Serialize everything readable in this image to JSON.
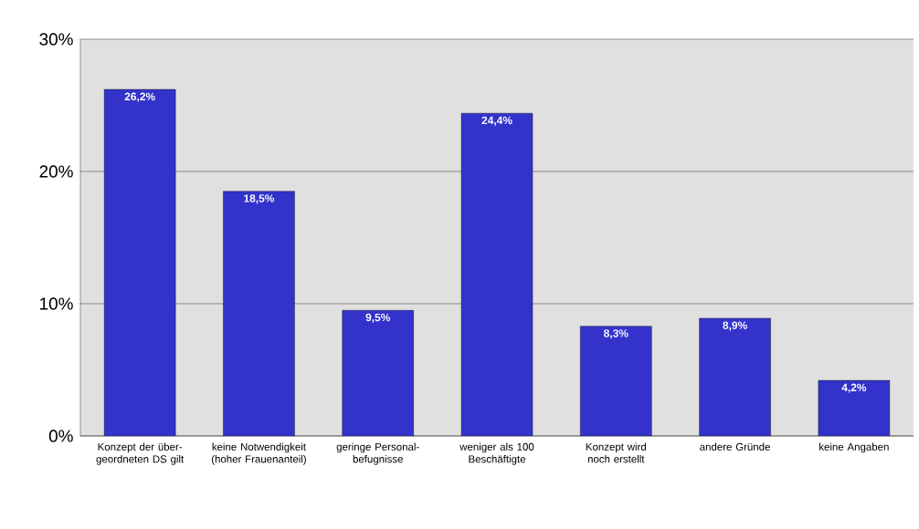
{
  "chart_data": {
    "type": "bar",
    "categories": [
      "Konzept der über-geordneten DS gilt",
      "keine Notwendigkeit (hoher Frauenanteil)",
      "geringe Personal-befugnisse",
      "weniger als 100 Beschäftigte",
      "Konzept wird noch erstellt",
      "andere Gründe",
      "keine Angaben"
    ],
    "values": [
      26.2,
      18.5,
      9.5,
      24.4,
      8.3,
      8.9,
      4.2
    ],
    "value_labels": [
      "26,2%",
      "18,5%",
      "9,5%",
      "24,4%",
      "8,3%",
      "8,9%",
      "4,2%"
    ],
    "color": "#3333cc",
    "ylim": [
      0,
      30
    ],
    "yticks": [
      {
        "value": 0,
        "label": "0%"
      },
      {
        "value": 10,
        "label": "10%"
      },
      {
        "value": 20,
        "label": "20%"
      },
      {
        "value": 30,
        "label": "30%"
      }
    ],
    "grid": "y"
  }
}
